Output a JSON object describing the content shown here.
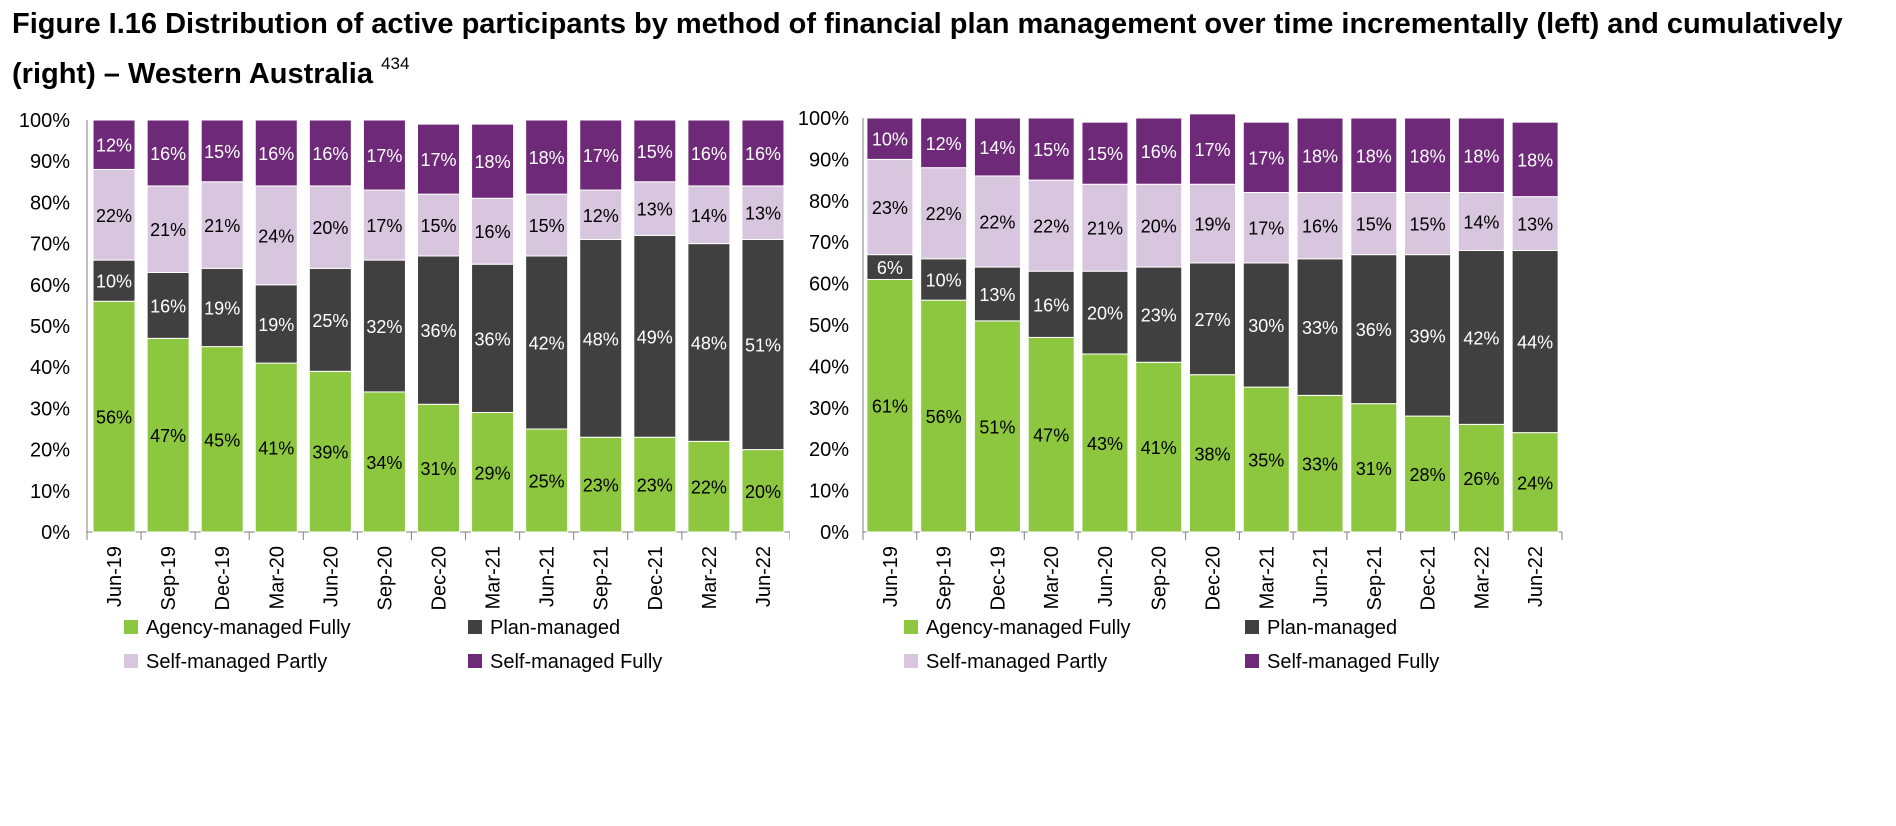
{
  "title": {
    "text": "Figure I.16 Distribution of active participants by method of financial plan management over time incrementally (left) and cumulatively (right) – Western Australia",
    "footnote": "434"
  },
  "colors": {
    "Agency-managed Fully": "#8dc63f",
    "Plan-managed": "#404040",
    "Self-managed Partly": "#d7c6de",
    "Self-managed Fully": "#6e2a78"
  },
  "chart_data": [
    {
      "type": "bar",
      "stacked": true,
      "categories": [
        "Jun-19",
        "Sep-19",
        "Dec-19",
        "Mar-20",
        "Jun-20",
        "Sep-20",
        "Dec-20",
        "Mar-21",
        "Jun-21",
        "Sep-21",
        "Dec-21",
        "Mar-22",
        "Jun-22"
      ],
      "series": [
        {
          "name": "Agency-managed Fully",
          "values": [
            56,
            47,
            45,
            41,
            39,
            34,
            31,
            29,
            25,
            23,
            23,
            22,
            20
          ],
          "labels": [
            "56%",
            "47%",
            "45%",
            "41%",
            "39%",
            "34%",
            "31%",
            "29%",
            "25%",
            "23%",
            "23%",
            "22%",
            "20%"
          ]
        },
        {
          "name": "Plan-managed",
          "values": [
            10,
            16,
            19,
            19,
            25,
            32,
            36,
            36,
            42,
            48,
            49,
            48,
            51
          ],
          "labels": [
            "10%",
            "16%",
            "19%",
            "19%",
            "25%",
            "32%",
            "36%",
            "36%",
            "42%",
            "48%",
            "49%",
            "48%",
            "51%"
          ]
        },
        {
          "name": "Self-managed Partly",
          "values": [
            22,
            21,
            21,
            24,
            20,
            17,
            15,
            16,
            15,
            12,
            13,
            14,
            13
          ],
          "labels": [
            "22%",
            "21%",
            "21%",
            "24%",
            "20%",
            "17%",
            "15%",
            "16%",
            "15%",
            "12%",
            "13%",
            "14%",
            "13%"
          ]
        },
        {
          "name": "Self-managed Fully",
          "values": [
            12,
            16,
            15,
            16,
            16,
            17,
            17,
            18,
            18,
            17,
            15,
            16,
            16
          ],
          "labels": [
            "12%",
            "16%",
            "15%",
            "16%",
            "16%",
            "17%",
            "17%",
            "18%",
            "18%",
            "17%",
            "15%",
            "16%",
            "16%"
          ]
        }
      ],
      "yticks": [
        "0%",
        "10%",
        "20%",
        "30%",
        "40%",
        "50%",
        "60%",
        "70%",
        "80%",
        "90%",
        "100%"
      ],
      "ylim": [
        0,
        100
      ],
      "grid": false,
      "legend_placement": "bottom"
    },
    {
      "type": "bar",
      "stacked": true,
      "categories": [
        "Jun-19",
        "Sep-19",
        "Dec-19",
        "Mar-20",
        "Jun-20",
        "Sep-20",
        "Dec-20",
        "Mar-21",
        "Jun-21",
        "Sep-21",
        "Dec-21",
        "Mar-22",
        "Jun-22"
      ],
      "series": [
        {
          "name": "Agency-managed Fully",
          "values": [
            61,
            56,
            51,
            47,
            43,
            41,
            38,
            35,
            33,
            31,
            28,
            26,
            24
          ],
          "labels": [
            "61%",
            "56%",
            "51%",
            "47%",
            "43%",
            "41%",
            "38%",
            "35%",
            "33%",
            "31%",
            "28%",
            "26%",
            "24%"
          ]
        },
        {
          "name": "Plan-managed",
          "values": [
            6,
            10,
            13,
            16,
            20,
            23,
            27,
            30,
            33,
            36,
            39,
            42,
            44
          ],
          "labels": [
            "6%",
            "10%",
            "13%",
            "16%",
            "20%",
            "23%",
            "27%",
            "30%",
            "33%",
            "36%",
            "39%",
            "42%",
            "44%"
          ]
        },
        {
          "name": "Self-managed Partly",
          "values": [
            23,
            22,
            22,
            22,
            21,
            20,
            19,
            17,
            16,
            15,
            15,
            14,
            13
          ],
          "labels": [
            "23%",
            "22%",
            "22%",
            "22%",
            "21%",
            "20%",
            "19%",
            "17%",
            "16%",
            "15%",
            "15%",
            "14%",
            "13%"
          ]
        },
        {
          "name": "Self-managed Fully",
          "values": [
            10,
            12,
            14,
            15,
            15,
            16,
            17,
            17,
            18,
            18,
            18,
            18,
            18
          ],
          "labels": [
            "10%",
            "12%",
            "14%",
            "15%",
            "15%",
            "16%",
            "17%",
            "17%",
            "18%",
            "18%",
            "18%",
            "18%",
            "18%"
          ]
        }
      ],
      "yticks": [
        "0%",
        "10%",
        "20%",
        "30%",
        "40%",
        "50%",
        "60%",
        "70%",
        "80%",
        "90%",
        "100%"
      ],
      "ylim": [
        0,
        100
      ],
      "grid": false,
      "legend_placement": "bottom"
    }
  ]
}
